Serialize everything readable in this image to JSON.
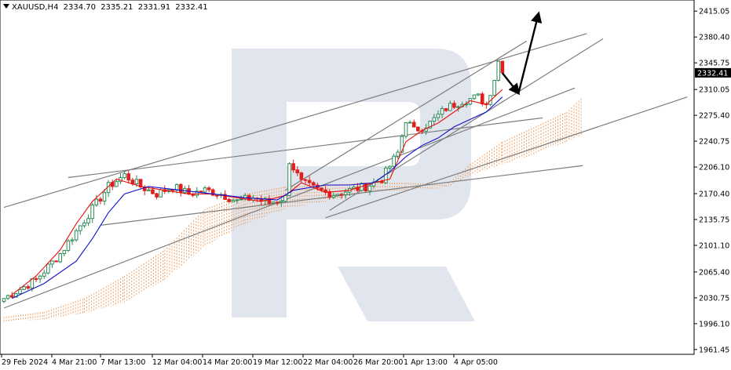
{
  "header": {
    "symbol": "XAUUSD,H4",
    "open": "2334.70",
    "high": "2335.21",
    "low": "2331.91",
    "close": "2332.41"
  },
  "price_label": "2332.41",
  "chart_data": {
    "type": "candlestick",
    "title": "XAUUSD,H4",
    "ylim": [
      1955,
      2430
    ],
    "y_ticks": [
      "2415.05",
      "2380.40",
      "2345.75",
      "2310.05",
      "2275.40",
      "2240.75",
      "2206.10",
      "2170.40",
      "2135.75",
      "2101.10",
      "2065.40",
      "2030.75",
      "1996.10",
      "1961.45"
    ],
    "x_ticks": [
      "29 Feb 2024",
      "4 Mar 21:00",
      "7 Mar 13:00",
      "12 Mar 04:00",
      "14 Mar 20:00",
      "19 Mar 12:00",
      "22 Mar 04:00",
      "26 Mar 20:00",
      "1 Apr 13:00",
      "4 Apr 05:00"
    ],
    "last_price": 2332.41,
    "anchors": [
      [
        0,
        2030
      ],
      [
        8,
        2055
      ],
      [
        14,
        2090
      ],
      [
        18,
        2120
      ],
      [
        22,
        2150
      ],
      [
        26,
        2180
      ],
      [
        30,
        2195
      ],
      [
        34,
        2180
      ],
      [
        38,
        2170
      ],
      [
        42,
        2180
      ],
      [
        46,
        2170
      ],
      [
        50,
        2175
      ],
      [
        54,
        2170
      ],
      [
        58,
        2160
      ],
      [
        62,
        2165
      ],
      [
        66,
        2158
      ],
      [
        70,
        2165
      ],
      [
        71,
        2215
      ],
      [
        74,
        2185
      ],
      [
        78,
        2175
      ],
      [
        82,
        2170
      ],
      [
        86,
        2175
      ],
      [
        90,
        2180
      ],
      [
        94,
        2190
      ],
      [
        98,
        2225
      ],
      [
        100,
        2270
      ],
      [
        102,
        2255
      ],
      [
        106,
        2265
      ],
      [
        110,
        2285
      ],
      [
        114,
        2295
      ],
      [
        118,
        2300
      ],
      [
        120,
        2290
      ],
      [
        122,
        2325
      ],
      [
        123,
        2348
      ],
      [
        124,
        2332.41
      ]
    ],
    "tenkan": [
      [
        2,
        2035
      ],
      [
        8,
        2060
      ],
      [
        14,
        2095
      ],
      [
        18,
        2130
      ],
      [
        22,
        2160
      ],
      [
        28,
        2190
      ],
      [
        34,
        2180
      ],
      [
        40,
        2175
      ],
      [
        46,
        2170
      ],
      [
        52,
        2170
      ],
      [
        58,
        2165
      ],
      [
        64,
        2160
      ],
      [
        70,
        2168
      ],
      [
        74,
        2185
      ],
      [
        80,
        2172
      ],
      [
        86,
        2175
      ],
      [
        92,
        2185
      ],
      [
        96,
        2190
      ],
      [
        100,
        2240
      ],
      [
        104,
        2255
      ],
      [
        108,
        2265
      ],
      [
        112,
        2280
      ],
      [
        116,
        2295
      ],
      [
        120,
        2290
      ],
      [
        122,
        2300
      ],
      [
        124,
        2310
      ]
    ],
    "kijun": [
      [
        2,
        2030
      ],
      [
        10,
        2050
      ],
      [
        18,
        2080
      ],
      [
        22,
        2110
      ],
      [
        26,
        2145
      ],
      [
        30,
        2170
      ],
      [
        36,
        2180
      ],
      [
        44,
        2175
      ],
      [
        52,
        2170
      ],
      [
        60,
        2165
      ],
      [
        68,
        2162
      ],
      [
        72,
        2175
      ],
      [
        80,
        2182
      ],
      [
        86,
        2182
      ],
      [
        92,
        2185
      ],
      [
        96,
        2200
      ],
      [
        100,
        2220
      ],
      [
        104,
        2235
      ],
      [
        108,
        2245
      ],
      [
        112,
        2260
      ],
      [
        116,
        2270
      ],
      [
        120,
        2280
      ],
      [
        124,
        2300
      ]
    ],
    "cloud_a": [
      [
        0,
        2005
      ],
      [
        10,
        2012
      ],
      [
        20,
        2030
      ],
      [
        30,
        2060
      ],
      [
        40,
        2095
      ],
      [
        50,
        2150
      ],
      [
        60,
        2170
      ],
      [
        70,
        2180
      ],
      [
        80,
        2182
      ],
      [
        90,
        2185
      ],
      [
        100,
        2185
      ],
      [
        110,
        2182
      ],
      [
        116,
        2210
      ],
      [
        124,
        2240
      ],
      [
        130,
        2255
      ],
      [
        140,
        2280
      ],
      [
        144,
        2300
      ]
    ],
    "cloud_b": [
      [
        0,
        1998
      ],
      [
        10,
        2002
      ],
      [
        20,
        2010
      ],
      [
        30,
        2025
      ],
      [
        40,
        2055
      ],
      [
        50,
        2100
      ],
      [
        60,
        2130
      ],
      [
        70,
        2150
      ],
      [
        80,
        2160
      ],
      [
        90,
        2172
      ],
      [
        100,
        2175
      ],
      [
        110,
        2178
      ],
      [
        116,
        2195
      ],
      [
        124,
        2210
      ],
      [
        130,
        2220
      ],
      [
        140,
        2240
      ],
      [
        144,
        2250
      ]
    ],
    "trendlines": [
      [
        0,
        2152,
        145,
        2385
      ],
      [
        16,
        2192,
        134,
        2272
      ],
      [
        24,
        2128,
        144,
        2208
      ],
      [
        0,
        2017,
        142,
        2312
      ],
      [
        81,
        2148,
        149,
        2378
      ],
      [
        70,
        2175,
        130,
        2375
      ],
      [
        80,
        2138,
        170,
        2300
      ]
    ],
    "forecast": [
      [
        124,
        2332
      ],
      [
        128,
        2305
      ],
      [
        133,
        2412
      ]
    ]
  },
  "colors": {
    "bull": "#2e8b57",
    "bear": "#e0201e",
    "tenkan": "#e8100c",
    "kijun": "#1010d0",
    "cloud": "#f0a060",
    "trend": "#7d7d7d",
    "forecast": "#000000",
    "watermark": "#d7dce8"
  }
}
